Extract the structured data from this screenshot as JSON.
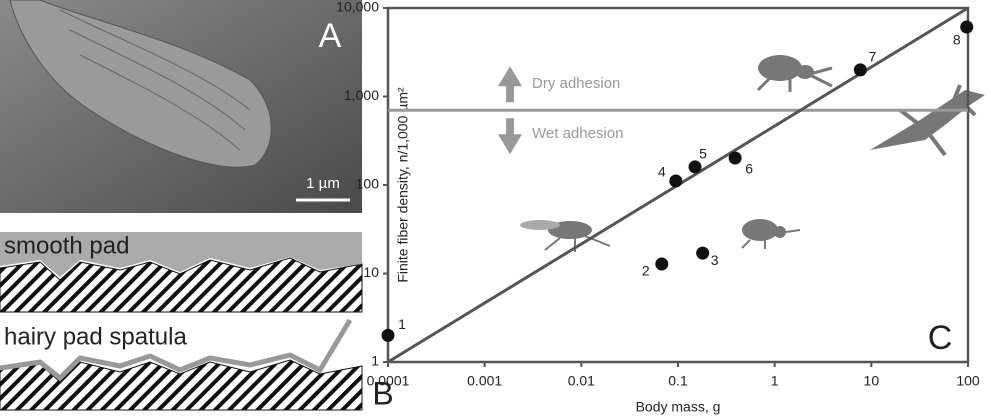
{
  "panel_labels": [
    "A",
    "B",
    "C"
  ],
  "scale_bar": "1 µm",
  "pad_labels": [
    "smooth pad",
    "hairy pad spatula"
  ],
  "chart_data": {
    "type": "scatter",
    "x_label": "Body mass, g",
    "y_label": "Finite fiber density, n/1,000 µm²",
    "x": [
      0.0001,
      0.068,
      0.18,
      0.095,
      0.15,
      0.39,
      7.7,
      97
    ],
    "values": [
      2,
      12.8,
      17,
      111,
      160,
      202,
      2000,
      6100
    ],
    "point_labels": [
      "1",
      "2",
      "3",
      "4",
      "5",
      "6",
      "7",
      "8"
    ],
    "color": "#111111",
    "xlim": [
      0.0001,
      100
    ],
    "ylim": [
      1,
      10000
    ],
    "xscale": "log",
    "yscale": "log",
    "xticks": [
      0.0001,
      0.001,
      0.01,
      0.1,
      1,
      10,
      100
    ],
    "yticks": [
      1,
      10,
      100,
      {
        "value": 1000,
        "label": "1,000"
      },
      {
        "value": 10000,
        "label": "10,000"
      }
    ],
    "reference_line": {
      "x": [
        0.0001,
        100
      ],
      "y": [
        1,
        10000
      ],
      "color": "#555555"
    },
    "threshold": {
      "value": 700,
      "color": "#999999",
      "labels": [
        "Dry adhesion",
        "Wet adhesion"
      ]
    }
  }
}
